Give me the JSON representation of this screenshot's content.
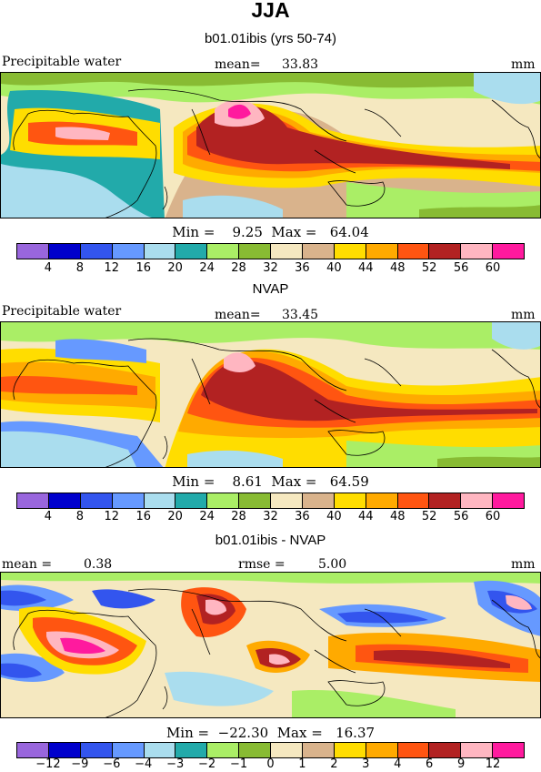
{
  "title": "JJA",
  "units": "mm",
  "colors": {
    "abs": [
      "#9966dd",
      "#0000cc",
      "#3355ee",
      "#6699ff",
      "#aaddee",
      "#22aaaa",
      "#aaee66",
      "#88bb33",
      "#f5e8c0",
      "#d9b38c",
      "#ffdd00",
      "#ffaa00",
      "#ff5511",
      "#b22222",
      "#ffb6c1",
      "#ff1a9e"
    ],
    "diff": [
      "#9966dd",
      "#0000cc",
      "#3355ee",
      "#6699ff",
      "#aaddee",
      "#22aaaa",
      "#aaee66",
      "#88bb33",
      "#f5e8c0",
      "#d9b38c",
      "#ffdd00",
      "#ffaa00",
      "#ff5511",
      "#b22222",
      "#ffb6c1",
      "#ff1a9e"
    ]
  },
  "panels": [
    {
      "title": "b01.01ibis (yrs 50-74)",
      "variable": "Precipitable water",
      "mean_label": "mean=",
      "mean_value": "33.83",
      "units": "mm",
      "minmax": "Min =    9.25  Max =   64.04",
      "ticks": [
        "4",
        "8",
        "12",
        "16",
        "20",
        "24",
        "28",
        "32",
        "36",
        "40",
        "44",
        "48",
        "52",
        "56",
        "60"
      ]
    },
    {
      "title": "NVAP",
      "variable": "Precipitable water",
      "mean_label": "mean=",
      "mean_value": "33.45",
      "units": "mm",
      "minmax": "Min =    8.61  Max =   64.59",
      "ticks": [
        "4",
        "8",
        "12",
        "16",
        "20",
        "24",
        "28",
        "32",
        "36",
        "40",
        "44",
        "48",
        "52",
        "56",
        "60"
      ]
    },
    {
      "title": "b01.01ibis - NVAP",
      "mean_label": "mean =",
      "mean_value": "0.38",
      "rmse_label": "rmse =",
      "rmse_value": "5.00",
      "units": "mm",
      "minmax": "Min =  −22.30  Max =   16.37",
      "ticks": [
        "−12",
        "−9",
        "−6",
        "−4",
        "−3",
        "−2",
        "−1",
        "0",
        "1",
        "2",
        "3",
        "4",
        "6",
        "9",
        "12"
      ]
    }
  ]
}
